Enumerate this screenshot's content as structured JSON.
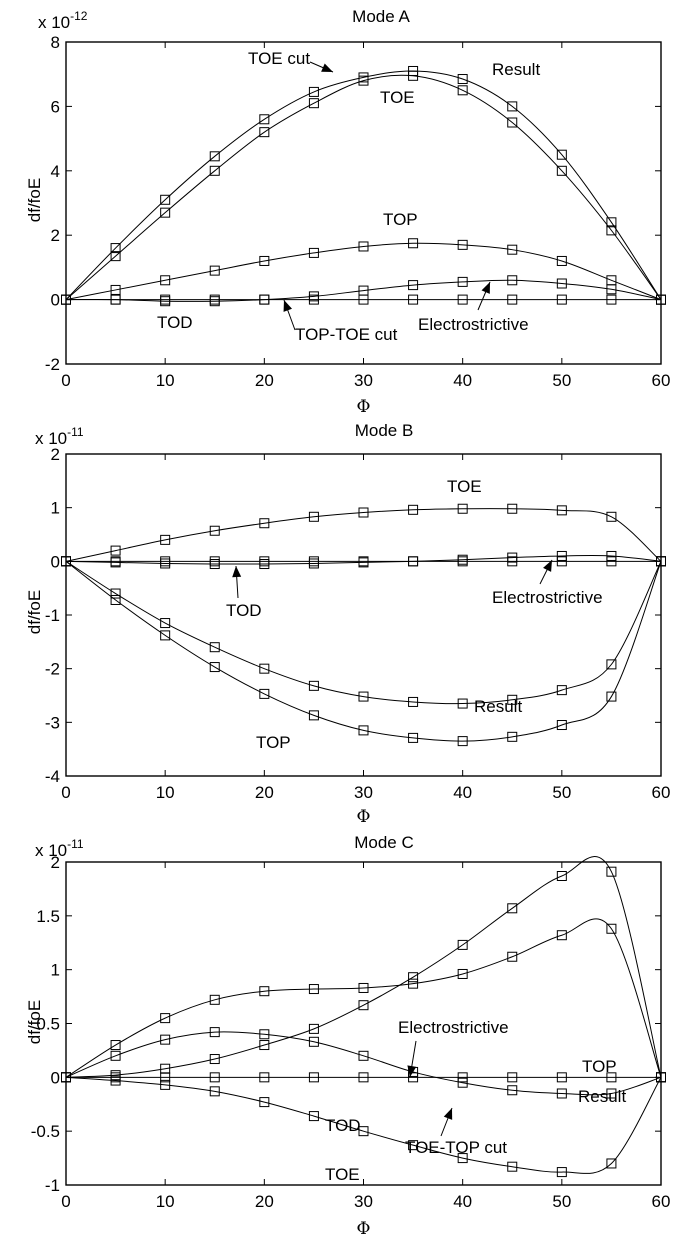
{
  "chart_data": [
    {
      "type": "line",
      "title": "Mode A",
      "xlabel": "Φ",
      "ylabel": "df/foE",
      "scale_base": "x 10",
      "scale_exp": "-12",
      "xlim": [
        0,
        60
      ],
      "ylim": [
        -2,
        8
      ],
      "xticks": [
        "0",
        "10",
        "20",
        "30",
        "40",
        "50",
        "60"
      ],
      "yticks": [
        "-2",
        "0",
        "2",
        "4",
        "6",
        "8"
      ],
      "x": [
        0,
        5,
        10,
        15,
        20,
        25,
        30,
        35,
        40,
        45,
        50,
        55,
        60
      ],
      "series": [
        {
          "name": "Result",
          "values": [
            0,
            1.6,
            3.1,
            4.45,
            5.6,
            6.45,
            6.9,
            7.1,
            6.85,
            6.0,
            4.5,
            2.4,
            0
          ]
        },
        {
          "name": "TOE",
          "values": [
            0,
            1.35,
            2.7,
            4.0,
            5.2,
            6.1,
            6.8,
            6.95,
            6.5,
            5.5,
            4.0,
            2.15,
            0
          ]
        },
        {
          "name": "TOP",
          "values": [
            0,
            0.3,
            0.6,
            0.9,
            1.2,
            1.45,
            1.65,
            1.75,
            1.7,
            1.55,
            1.2,
            0.6,
            0
          ]
        },
        {
          "name": "Electrostrictive",
          "values": [
            0,
            0.0,
            -0.05,
            -0.05,
            0.0,
            0.1,
            0.28,
            0.45,
            0.55,
            0.6,
            0.5,
            0.32,
            0
          ]
        },
        {
          "name": "TOD",
          "values": [
            0,
            0,
            0,
            0,
            0,
            0,
            0,
            0,
            0,
            0,
            0,
            0,
            0
          ]
        }
      ],
      "annotations": [
        {
          "text": "TOE cut"
        },
        {
          "text": "Result"
        },
        {
          "text": "TOE"
        },
        {
          "text": "TOP"
        },
        {
          "text": "TOD"
        },
        {
          "text": "TOP-TOE cut"
        },
        {
          "text": "Electrostrictive"
        }
      ]
    },
    {
      "type": "line",
      "title": "Mode B",
      "xlabel": "Φ",
      "ylabel": "df/foE",
      "scale_base": "x 10",
      "scale_exp": "-11",
      "xlim": [
        0,
        60
      ],
      "ylim": [
        -4,
        2
      ],
      "xticks": [
        "0",
        "10",
        "20",
        "30",
        "40",
        "50",
        "60"
      ],
      "yticks": [
        "-4",
        "-3",
        "-2",
        "-1",
        "0",
        "1",
        "2"
      ],
      "x": [
        0,
        5,
        10,
        15,
        20,
        25,
        30,
        35,
        40,
        45,
        50,
        55,
        60
      ],
      "series": [
        {
          "name": "TOE",
          "values": [
            0,
            0.2,
            0.4,
            0.57,
            0.71,
            0.83,
            0.91,
            0.96,
            0.98,
            0.98,
            0.95,
            0.83,
            0
          ]
        },
        {
          "name": "Electrostrictive",
          "values": [
            0,
            -0.02,
            -0.04,
            -0.05,
            -0.05,
            -0.04,
            -0.02,
            0.0,
            0.03,
            0.07,
            0.1,
            0.1,
            0
          ]
        },
        {
          "name": "TOD",
          "values": [
            0,
            0,
            0,
            0,
            0,
            0,
            0,
            0,
            0,
            0,
            0,
            0,
            0
          ]
        },
        {
          "name": "Result",
          "values": [
            0,
            -0.6,
            -1.15,
            -1.6,
            -2.0,
            -2.32,
            -2.52,
            -2.62,
            -2.65,
            -2.58,
            -2.4,
            -1.92,
            0
          ]
        },
        {
          "name": "TOP",
          "values": [
            0,
            -0.72,
            -1.38,
            -1.97,
            -2.47,
            -2.87,
            -3.15,
            -3.29,
            -3.35,
            -3.27,
            -3.05,
            -2.52,
            0
          ]
        }
      ],
      "annotations": [
        {
          "text": "TOE"
        },
        {
          "text": "TOD"
        },
        {
          "text": "Electrostrictive"
        },
        {
          "text": "Result"
        },
        {
          "text": "TOP"
        }
      ]
    },
    {
      "type": "line",
      "title": "Mode C",
      "xlabel": "Φ",
      "ylabel": "df/foE",
      "scale_base": "x 10",
      "scale_exp": "-11",
      "xlim": [
        0,
        60
      ],
      "ylim": [
        -1,
        2
      ],
      "xticks": [
        "0",
        "10",
        "20",
        "30",
        "40",
        "50",
        "60"
      ],
      "yticks": [
        "-1",
        "-0.5",
        "0",
        "0.5",
        "1",
        "1.5",
        "2"
      ],
      "x": [
        0,
        5,
        10,
        15,
        20,
        25,
        30,
        35,
        40,
        45,
        50,
        55,
        60
      ],
      "series": [
        {
          "name": "TOP",
          "values": [
            0,
            0.02,
            0.08,
            0.17,
            0.3,
            0.45,
            0.67,
            0.93,
            1.23,
            1.57,
            1.87,
            1.91,
            0
          ]
        },
        {
          "name": "Result",
          "values": [
            0,
            0.3,
            0.55,
            0.72,
            0.8,
            0.82,
            0.83,
            0.87,
            0.96,
            1.12,
            1.32,
            1.38,
            0
          ]
        },
        {
          "name": "Electrostrictive",
          "values": [
            0,
            0.2,
            0.35,
            0.42,
            0.4,
            0.33,
            0.2,
            0.05,
            -0.05,
            -0.12,
            -0.15,
            -0.15,
            0
          ]
        },
        {
          "name": "TOD",
          "values": [
            0,
            0,
            0,
            0,
            0,
            0,
            0,
            0,
            0,
            0,
            0,
            0,
            0
          ]
        },
        {
          "name": "TOE",
          "values": [
            0,
            -0.03,
            -0.07,
            -0.13,
            -0.23,
            -0.36,
            -0.5,
            -0.63,
            -0.75,
            -0.83,
            -0.88,
            -0.8,
            0
          ]
        }
      ],
      "annotations": [
        {
          "text": "TOP"
        },
        {
          "text": "Result"
        },
        {
          "text": "Electrostrictive"
        },
        {
          "text": "TOD"
        },
        {
          "text": "TOE-TOP cut"
        },
        {
          "text": "TOE"
        }
      ]
    }
  ]
}
